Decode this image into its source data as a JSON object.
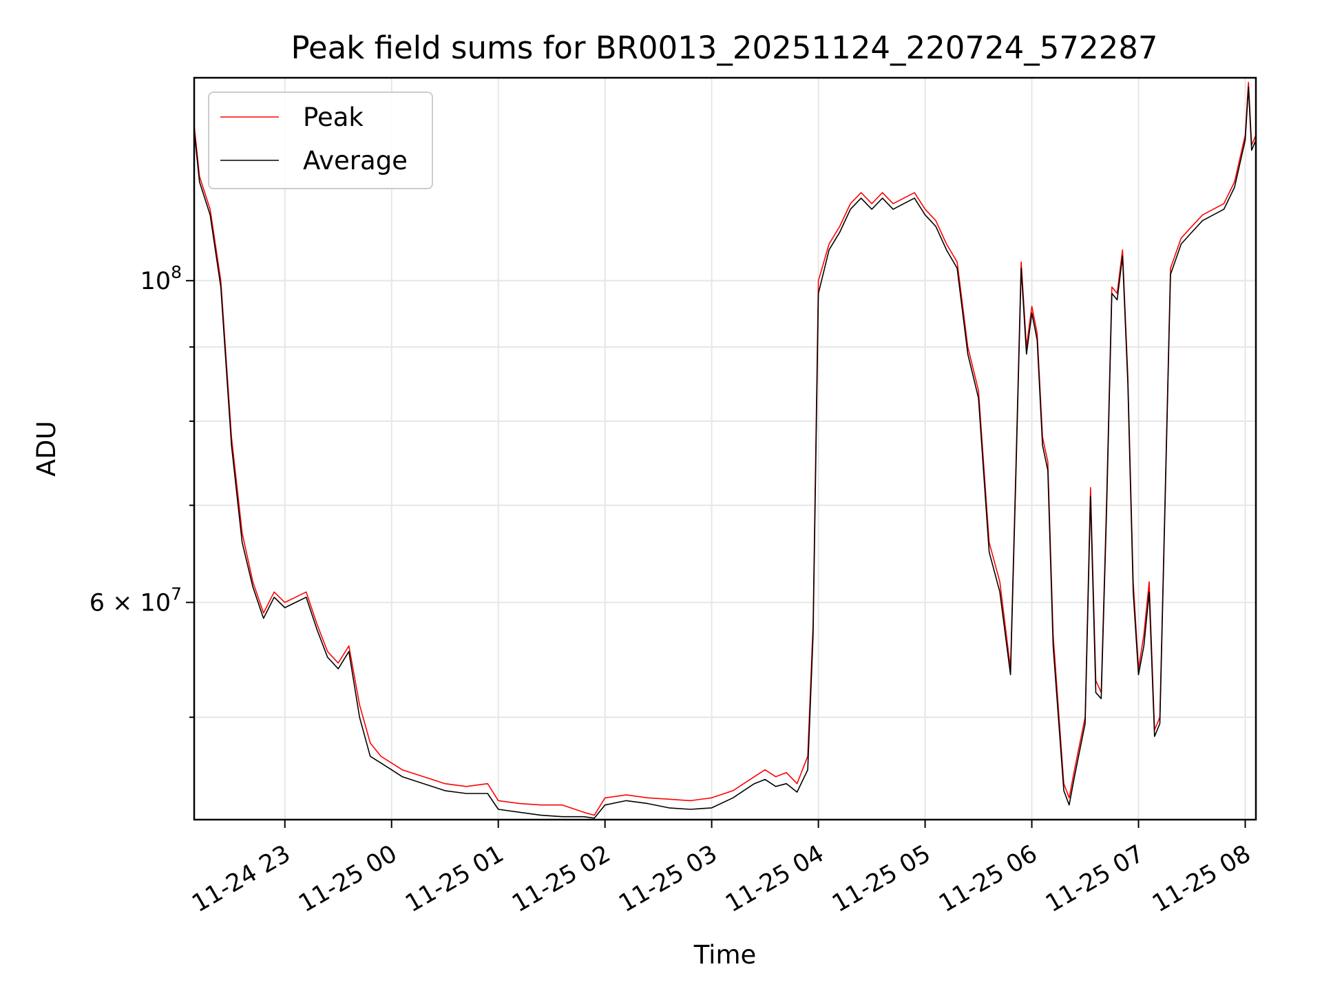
{
  "chart_data": {
    "type": "line",
    "title": "Peak field sums for BR0013_20251124_220724_572287",
    "xlabel": "Time",
    "ylabel": "ADU",
    "yscale": "log",
    "xlim_hours": [
      22.15,
      32.1
    ],
    "ylim": [
      42500000,
      138000000
    ],
    "grid": true,
    "legend_location": "upper-left",
    "x_ticks": [
      {
        "hour": 23,
        "label": "11-24 23"
      },
      {
        "hour": 24,
        "label": "11-25 00"
      },
      {
        "hour": 25,
        "label": "11-25 01"
      },
      {
        "hour": 26,
        "label": "11-25 02"
      },
      {
        "hour": 27,
        "label": "11-25 03"
      },
      {
        "hour": 28,
        "label": "11-25 04"
      },
      {
        "hour": 29,
        "label": "11-25 05"
      },
      {
        "hour": 30,
        "label": "11-25 06"
      },
      {
        "hour": 31,
        "label": "11-25 07"
      },
      {
        "hour": 32,
        "label": "11-25 08"
      }
    ],
    "y_major_ticks": [
      {
        "value": 100000000,
        "base": "10",
        "exp": "8",
        "label": "10^8"
      },
      {
        "value": 60000000,
        "mantissa": "6",
        "base": "10",
        "exp": "7",
        "label": "6×10^7"
      }
    ],
    "y_minor_ticks": [
      50000000,
      70000000,
      80000000,
      90000000
    ],
    "series": [
      {
        "name": "Peak",
        "color": "#ff0000",
        "x_hours": [
          22.15,
          22.2,
          22.3,
          22.4,
          22.5,
          22.6,
          22.7,
          22.8,
          22.9,
          23.0,
          23.1,
          23.2,
          23.3,
          23.4,
          23.5,
          23.6,
          23.7,
          23.8,
          23.9,
          24.0,
          24.1,
          24.3,
          24.5,
          24.7,
          24.9,
          25.0,
          25.2,
          25.4,
          25.6,
          25.8,
          25.9,
          26.0,
          26.2,
          26.4,
          26.6,
          26.8,
          27.0,
          27.2,
          27.3,
          27.4,
          27.5,
          27.6,
          27.7,
          27.8,
          27.9,
          27.95,
          28.0,
          28.1,
          28.2,
          28.3,
          28.4,
          28.5,
          28.6,
          28.7,
          28.8,
          28.9,
          29.0,
          29.1,
          29.2,
          29.3,
          29.4,
          29.5,
          29.6,
          29.7,
          29.8,
          29.85,
          29.9,
          29.95,
          30.0,
          30.05,
          30.1,
          30.15,
          30.2,
          30.3,
          30.35,
          30.4,
          30.5,
          30.55,
          30.6,
          30.65,
          30.7,
          30.75,
          30.8,
          30.85,
          30.9,
          30.95,
          31.0,
          31.05,
          31.1,
          31.15,
          31.2,
          31.3,
          31.4,
          31.5,
          31.6,
          31.7,
          31.8,
          31.9,
          32.0,
          32.03,
          32.06,
          32.1
        ],
        "values": [
          128000000,
          118000000,
          112000000,
          100000000,
          78000000,
          67000000,
          62000000,
          59000000,
          61000000,
          60000000,
          60500000,
          61000000,
          58000000,
          55500000,
          54500000,
          56000000,
          51000000,
          48000000,
          47000000,
          46500000,
          46000000,
          45500000,
          45000000,
          44800000,
          45000000,
          43800000,
          43600000,
          43500000,
          43500000,
          43000000,
          42800000,
          44000000,
          44200000,
          44000000,
          43900000,
          43800000,
          44000000,
          44500000,
          45000000,
          45500000,
          46000000,
          45500000,
          45800000,
          45000000,
          47000000,
          58000000,
          100000000,
          106000000,
          109000000,
          113000000,
          115000000,
          113000000,
          115000000,
          113000000,
          114000000,
          115000000,
          112000000,
          110000000,
          106000000,
          103000000,
          90000000,
          84000000,
          66000000,
          62000000,
          54000000,
          74000000,
          103000000,
          90000000,
          96000000,
          92000000,
          78000000,
          75000000,
          57000000,
          45000000,
          44000000,
          46000000,
          50000000,
          72000000,
          53000000,
          52000000,
          70000000,
          99000000,
          98000000,
          105000000,
          86000000,
          62000000,
          54000000,
          57000000,
          62000000,
          49000000,
          50000000,
          102000000,
          107000000,
          109000000,
          111000000,
          112000000,
          113000000,
          117000000,
          126000000,
          137000000,
          124000000,
          126000000
        ]
      },
      {
        "name": "Average",
        "color": "#000000",
        "x_hours": [
          22.15,
          22.2,
          22.3,
          22.4,
          22.5,
          22.6,
          22.7,
          22.8,
          22.9,
          23.0,
          23.1,
          23.2,
          23.3,
          23.4,
          23.5,
          23.6,
          23.7,
          23.8,
          23.9,
          24.0,
          24.1,
          24.3,
          24.5,
          24.7,
          24.9,
          25.0,
          25.2,
          25.4,
          25.6,
          25.8,
          25.9,
          26.0,
          26.2,
          26.4,
          26.6,
          26.8,
          27.0,
          27.2,
          27.3,
          27.4,
          27.5,
          27.6,
          27.7,
          27.8,
          27.9,
          27.95,
          28.0,
          28.1,
          28.2,
          28.3,
          28.4,
          28.5,
          28.6,
          28.7,
          28.8,
          28.9,
          29.0,
          29.1,
          29.2,
          29.3,
          29.4,
          29.5,
          29.6,
          29.7,
          29.8,
          29.85,
          29.9,
          29.95,
          30.0,
          30.05,
          30.1,
          30.15,
          30.2,
          30.3,
          30.35,
          30.4,
          30.5,
          30.55,
          30.6,
          30.65,
          30.7,
          30.75,
          30.8,
          30.85,
          30.9,
          30.95,
          31.0,
          31.05,
          31.1,
          31.15,
          31.2,
          31.3,
          31.4,
          31.5,
          31.6,
          31.7,
          31.8,
          31.9,
          32.0,
          32.03,
          32.06,
          32.1
        ],
        "values": [
          127000000,
          117000000,
          111000000,
          99000000,
          77000000,
          66000000,
          61500000,
          58500000,
          60500000,
          59500000,
          60000000,
          60500000,
          57500000,
          55000000,
          54000000,
          55500000,
          50000000,
          47000000,
          46500000,
          46000000,
          45500000,
          45000000,
          44500000,
          44300000,
          44300000,
          43200000,
          43000000,
          42800000,
          42700000,
          42700000,
          42600000,
          43500000,
          43800000,
          43600000,
          43300000,
          43200000,
          43300000,
          44000000,
          44500000,
          45000000,
          45300000,
          44800000,
          45000000,
          44400000,
          46000000,
          57000000,
          98000000,
          105000000,
          108000000,
          112000000,
          114000000,
          112000000,
          114000000,
          112000000,
          113000000,
          114000000,
          111000000,
          109000000,
          105000000,
          102000000,
          89000000,
          83000000,
          65000000,
          61000000,
          53500000,
          73000000,
          102000000,
          89000000,
          95000000,
          91000000,
          77000000,
          74000000,
          56000000,
          44500000,
          43500000,
          45500000,
          49500000,
          71000000,
          52000000,
          51500000,
          69000000,
          98000000,
          97000000,
          104000000,
          85000000,
          61000000,
          53500000,
          56000000,
          61000000,
          48500000,
          49500000,
          101000000,
          106000000,
          108000000,
          110000000,
          111000000,
          112000000,
          116000000,
          125000000,
          136000000,
          123000000,
          125000000
        ]
      }
    ]
  }
}
